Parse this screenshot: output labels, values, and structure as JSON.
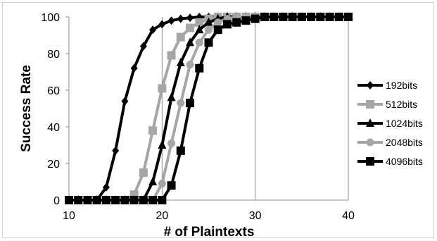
{
  "chart_data": {
    "type": "line",
    "xlabel": "# of Plaintexts",
    "ylabel": "Success Rate",
    "xlim": [
      10,
      40
    ],
    "ylim": [
      0,
      100
    ],
    "xticks": [
      10,
      20,
      30,
      40
    ],
    "yticks": [
      0,
      20,
      40,
      60,
      80,
      100
    ],
    "grid": "vertical",
    "legend_position": "right",
    "series": [
      {
        "name": "192bits",
        "color": "#000000",
        "marker": "diamond",
        "x": [
          10,
          11,
          12,
          13,
          14,
          15,
          16,
          17,
          18,
          19,
          20,
          21,
          22,
          23,
          24,
          25,
          26,
          27,
          28,
          29,
          30,
          31,
          32,
          33,
          34,
          35,
          36,
          37,
          38,
          39,
          40
        ],
        "y": [
          0,
          0,
          0,
          0,
          7,
          27,
          54,
          72,
          84,
          93,
          96,
          98,
          99,
          99.5,
          100,
          100,
          100,
          100,
          100,
          100,
          100,
          100,
          100,
          100,
          100,
          100,
          100,
          100,
          100,
          100,
          100
        ]
      },
      {
        "name": "512bits",
        "color": "#a6a6a6",
        "marker": "square",
        "x": [
          10,
          11,
          12,
          13,
          14,
          15,
          16,
          17,
          18,
          19,
          20,
          21,
          22,
          23,
          24,
          25,
          26,
          27,
          28,
          29,
          30,
          31,
          32,
          33,
          34,
          35,
          36,
          37,
          38,
          39,
          40
        ],
        "y": [
          0,
          0,
          0,
          0,
          0,
          0,
          0,
          3,
          15,
          38,
          61,
          79,
          89,
          94,
          97,
          99,
          100,
          100,
          100,
          100,
          100,
          100,
          100,
          100,
          100,
          100,
          100,
          100,
          100,
          100,
          100
        ]
      },
      {
        "name": "1024bits",
        "color": "#000000",
        "marker": "triangle",
        "x": [
          10,
          11,
          12,
          13,
          14,
          15,
          16,
          17,
          18,
          19,
          20,
          21,
          22,
          23,
          24,
          25,
          26,
          27,
          28,
          29,
          30,
          31,
          32,
          33,
          34,
          35,
          36,
          37,
          38,
          39,
          40
        ],
        "y": [
          0,
          0,
          0,
          0,
          0,
          0,
          0,
          0,
          0,
          10,
          30,
          56,
          75,
          86,
          93,
          97,
          99,
          100,
          100,
          100,
          100,
          100,
          100,
          100,
          100,
          100,
          100,
          100,
          100,
          100,
          100
        ]
      },
      {
        "name": "2048bits",
        "color": "#a6a6a6",
        "marker": "circle",
        "x": [
          10,
          11,
          12,
          13,
          14,
          15,
          16,
          17,
          18,
          19,
          20,
          21,
          22,
          23,
          24,
          25,
          26,
          27,
          28,
          29,
          30,
          31,
          32,
          33,
          34,
          35,
          36,
          37,
          38,
          39,
          40
        ],
        "y": [
          0,
          0,
          0,
          0,
          0,
          0,
          0,
          0,
          0,
          0,
          9,
          31,
          53,
          74,
          86,
          93,
          97,
          99,
          100,
          100,
          100,
          100,
          100,
          100,
          100,
          100,
          100,
          100,
          100,
          100,
          100
        ]
      },
      {
        "name": "4096bits",
        "color": "#000000",
        "marker": "square",
        "x": [
          10,
          11,
          12,
          13,
          14,
          15,
          16,
          17,
          18,
          19,
          20,
          21,
          22,
          23,
          24,
          25,
          26,
          27,
          28,
          29,
          30,
          31,
          32,
          33,
          34,
          35,
          36,
          37,
          38,
          39,
          40
        ],
        "y": [
          0,
          0,
          0,
          0,
          0,
          0,
          0,
          0,
          0,
          0,
          0,
          8,
          27,
          53,
          72,
          86,
          93,
          96,
          97,
          98,
          99,
          100,
          100,
          100,
          100,
          100,
          100,
          100,
          100,
          100,
          100
        ]
      }
    ]
  }
}
